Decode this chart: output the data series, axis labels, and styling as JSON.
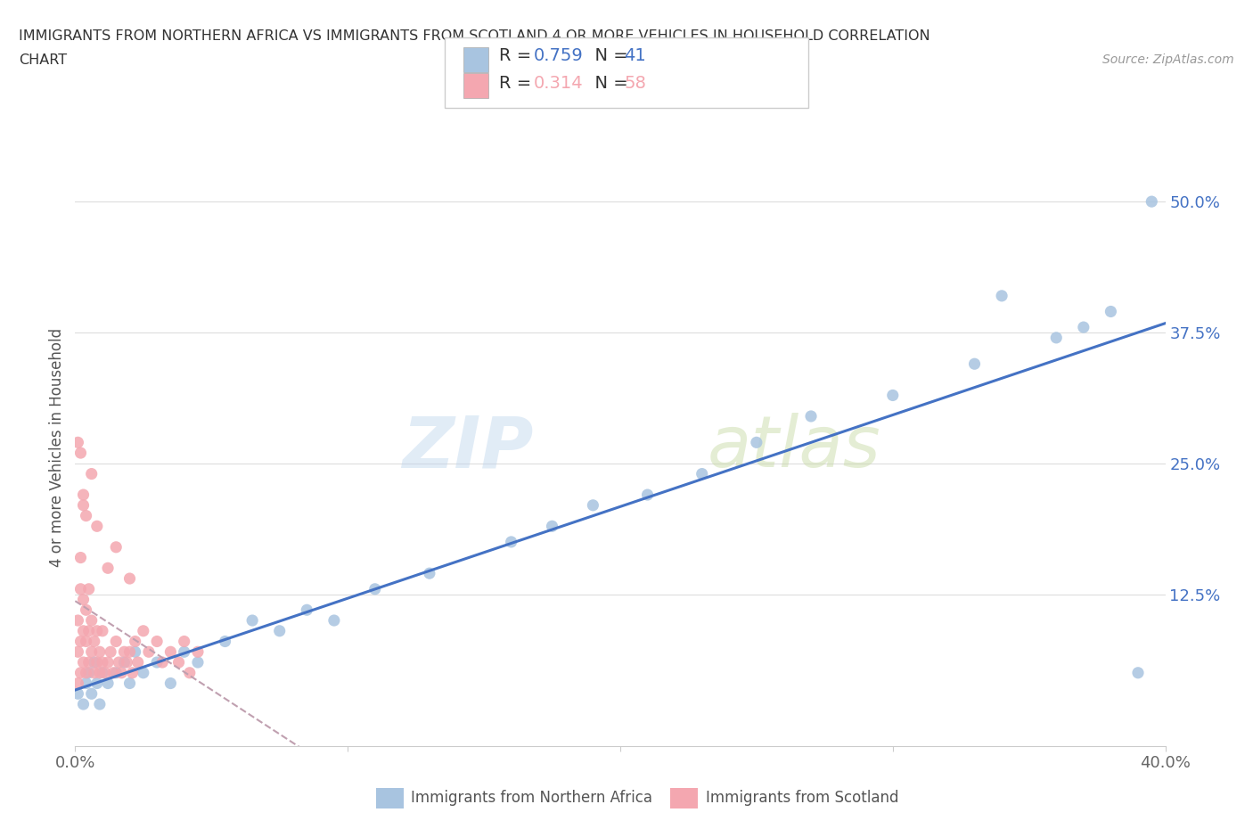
{
  "title_line1": "IMMIGRANTS FROM NORTHERN AFRICA VS IMMIGRANTS FROM SCOTLAND 4 OR MORE VEHICLES IN HOUSEHOLD CORRELATION",
  "title_line2": "CHART",
  "source_text": "Source: ZipAtlas.com",
  "ylabel": "4 or more Vehicles in Household",
  "xlim": [
    0.0,
    0.4
  ],
  "ylim": [
    -0.02,
    0.55
  ],
  "xticks": [
    0.0,
    0.1,
    0.2,
    0.3,
    0.4
  ],
  "xtick_labels": [
    "0.0%",
    "",
    "",
    "",
    "40.0%"
  ],
  "ytick_labels": [
    "12.5%",
    "25.0%",
    "37.5%",
    "50.0%"
  ],
  "yticks": [
    0.125,
    0.25,
    0.375,
    0.5
  ],
  "color_blue": "#A8C4E0",
  "color_pink": "#F4A7B0",
  "line_blue": "#4472C4",
  "line_dashed_color": "#C0A0B0",
  "R_blue": 0.759,
  "N_blue": 41,
  "R_pink": 0.314,
  "N_pink": 58,
  "legend_label_blue": "Immigrants from Northern Africa",
  "legend_label_pink": "Immigrants from Scotland",
  "watermark_zip": "ZIP",
  "watermark_atlas": "atlas",
  "background_color": "#FFFFFF",
  "blue_x": [
    0.001,
    0.003,
    0.004,
    0.005,
    0.006,
    0.007,
    0.008,
    0.009,
    0.01,
    0.012,
    0.015,
    0.018,
    0.02,
    0.022,
    0.025,
    0.03,
    0.035,
    0.04,
    0.045,
    0.055,
    0.065,
    0.075,
    0.085,
    0.095,
    0.11,
    0.13,
    0.16,
    0.175,
    0.19,
    0.21,
    0.23,
    0.25,
    0.27,
    0.3,
    0.33,
    0.36,
    0.38,
    0.39,
    0.395,
    0.37,
    0.34
  ],
  "blue_y": [
    0.03,
    0.02,
    0.04,
    0.05,
    0.03,
    0.06,
    0.04,
    0.02,
    0.05,
    0.04,
    0.05,
    0.06,
    0.04,
    0.07,
    0.05,
    0.06,
    0.04,
    0.07,
    0.06,
    0.08,
    0.1,
    0.09,
    0.11,
    0.1,
    0.13,
    0.145,
    0.175,
    0.19,
    0.21,
    0.22,
    0.24,
    0.27,
    0.295,
    0.315,
    0.345,
    0.37,
    0.395,
    0.05,
    0.5,
    0.38,
    0.41
  ],
  "pink_x": [
    0.001,
    0.001,
    0.001,
    0.002,
    0.002,
    0.002,
    0.002,
    0.003,
    0.003,
    0.003,
    0.004,
    0.004,
    0.004,
    0.005,
    0.005,
    0.005,
    0.006,
    0.006,
    0.007,
    0.007,
    0.008,
    0.008,
    0.009,
    0.009,
    0.01,
    0.01,
    0.011,
    0.012,
    0.013,
    0.014,
    0.015,
    0.016,
    0.017,
    0.018,
    0.019,
    0.02,
    0.021,
    0.022,
    0.023,
    0.025,
    0.027,
    0.03,
    0.032,
    0.035,
    0.038,
    0.04,
    0.042,
    0.045,
    0.02,
    0.015,
    0.008,
    0.012,
    0.003,
    0.004,
    0.006,
    0.002,
    0.001,
    0.003
  ],
  "pink_y": [
    0.04,
    0.07,
    0.1,
    0.05,
    0.08,
    0.13,
    0.16,
    0.06,
    0.09,
    0.12,
    0.05,
    0.08,
    0.11,
    0.06,
    0.09,
    0.13,
    0.07,
    0.1,
    0.05,
    0.08,
    0.06,
    0.09,
    0.05,
    0.07,
    0.06,
    0.09,
    0.05,
    0.06,
    0.07,
    0.05,
    0.08,
    0.06,
    0.05,
    0.07,
    0.06,
    0.07,
    0.05,
    0.08,
    0.06,
    0.09,
    0.07,
    0.08,
    0.06,
    0.07,
    0.06,
    0.08,
    0.05,
    0.07,
    0.14,
    0.17,
    0.19,
    0.15,
    0.22,
    0.2,
    0.24,
    0.26,
    0.27,
    0.21
  ]
}
